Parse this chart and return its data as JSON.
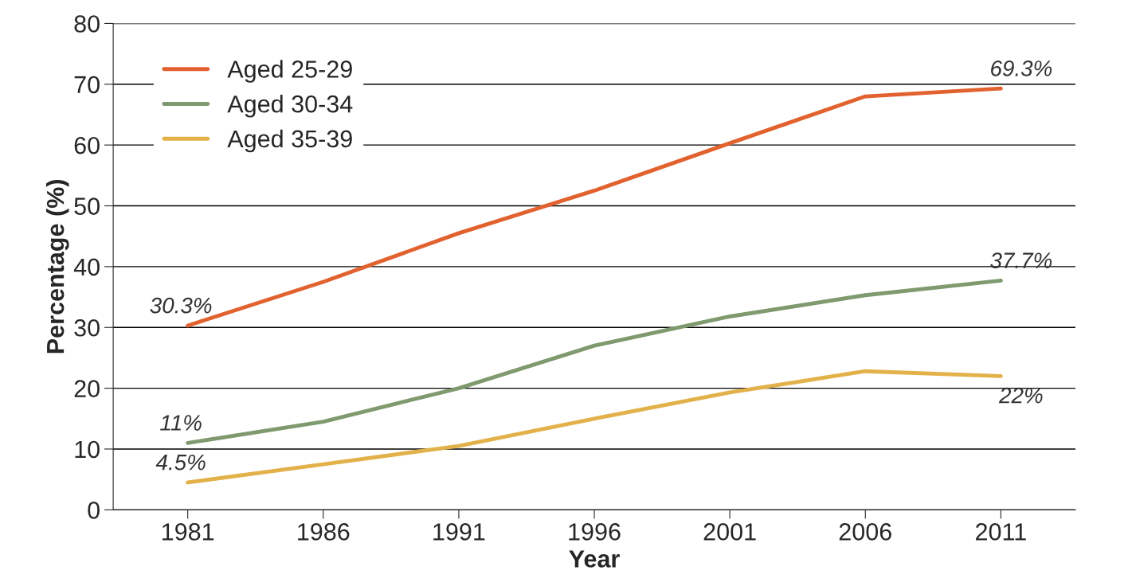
{
  "chart_data": {
    "type": "line",
    "xlabel": "Year",
    "ylabel": "Percentage (%)",
    "categories": [
      "1981",
      "1986",
      "1991",
      "1996",
      "2001",
      "2006",
      "2011"
    ],
    "ylim": [
      0,
      80
    ],
    "yticks": [
      0,
      10,
      20,
      30,
      40,
      50,
      60,
      70,
      80
    ],
    "grid": "y",
    "legend": "top left",
    "marker": "none",
    "line_style": "solid",
    "series": [
      {
        "name": "Aged 25-29",
        "color": "#e2622f",
        "values": [
          30.3,
          37.5,
          45.5,
          52.5,
          60.3,
          68,
          69.3
        ],
        "value_labels": [
          "30.3%",
          null,
          null,
          null,
          null,
          null,
          "69.3%"
        ]
      },
      {
        "name": "Aged 30-34",
        "color": "#7f9a6e",
        "values": [
          11,
          14.5,
          20,
          27,
          31.8,
          35.3,
          37.7
        ],
        "value_labels": [
          "11%",
          null,
          null,
          null,
          null,
          null,
          "37.7%"
        ]
      },
      {
        "name": "Aged 35-39",
        "color": "#e2b14a",
        "values": [
          4.5,
          7.5,
          10.5,
          15,
          19.3,
          22.8,
          22
        ],
        "value_labels": [
          "4.5%",
          null,
          null,
          null,
          null,
          null,
          "22%"
        ]
      }
    ]
  }
}
